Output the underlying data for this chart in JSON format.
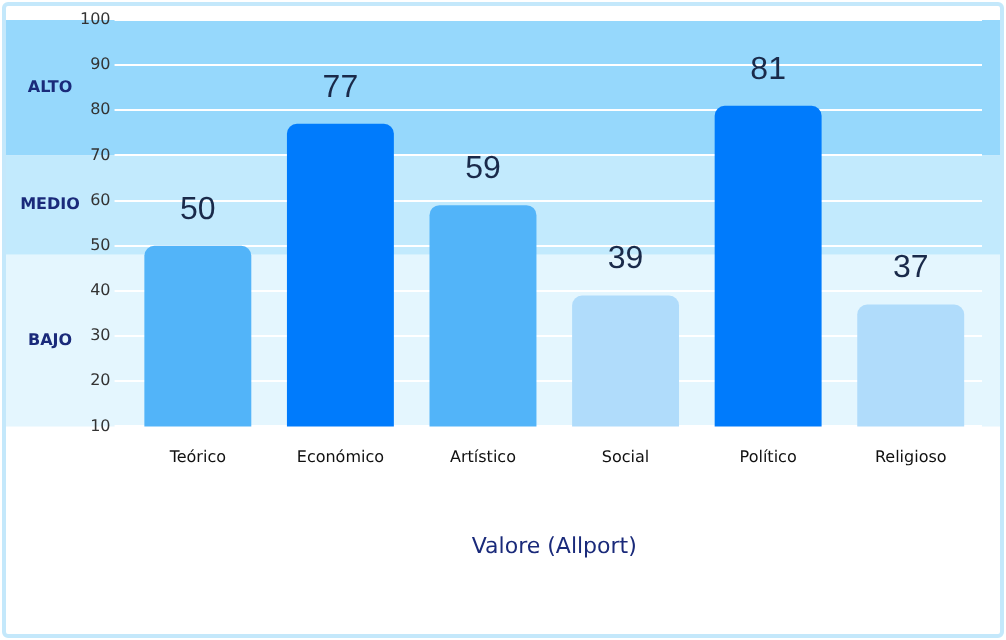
{
  "chart_data": {
    "type": "bar",
    "xlabel": "Valore (Allport)",
    "categories": [
      "Teórico",
      "Económico",
      "Artístico",
      "Social",
      "Político",
      "Religioso"
    ],
    "values": [
      50,
      77,
      59,
      39,
      81,
      37
    ],
    "colors": [
      "#52b4f9",
      "#007bfc",
      "#52b4f9",
      "#b0dcfb",
      "#007bfc",
      "#b0dcfb"
    ],
    "ylim": [
      10,
      100
    ],
    "yticks": [
      10,
      20,
      30,
      40,
      50,
      60,
      70,
      80,
      90,
      100
    ],
    "bands": [
      {
        "axis": "y",
        "from": 70,
        "to": 100,
        "label": "ALTO",
        "color": "#96d8fc"
      },
      {
        "axis": "y",
        "from": 48,
        "to": 70,
        "label": "MEDIO",
        "color": "#c2eafd"
      },
      {
        "axis": "y",
        "from": 10,
        "to": 48,
        "label": "BAJO",
        "color": "#e4f6fe"
      }
    ],
    "grid": "y",
    "legend": false,
    "data_labels": true
  }
}
